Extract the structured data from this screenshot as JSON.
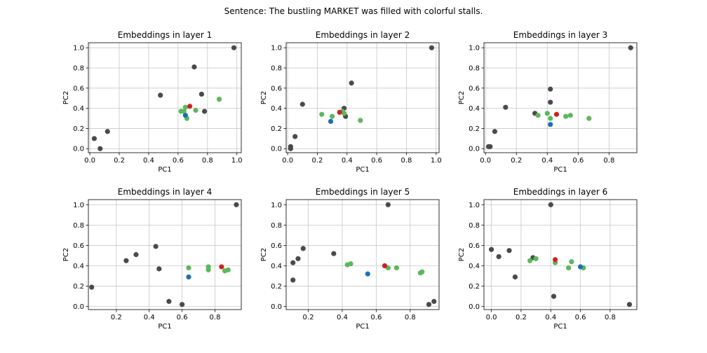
{
  "figure": {
    "suptitle": "Sentence: The bustling MARKET was filled with colorful stalls."
  },
  "colors": {
    "dark": "#4a4a4a",
    "green": "#5cb85c",
    "blue": "#1f6fb5",
    "red": "#cc2222",
    "grid": "#c8c8c8",
    "axis": "#000000"
  },
  "chart_data": [
    {
      "type": "scatter",
      "title": "Embeddings in layer 1",
      "xlabel": "PC1",
      "ylabel": "PC2",
      "xlim": [
        -0.01,
        1.03
      ],
      "ylim": [
        -0.04,
        1.05
      ],
      "xticks": [
        0.0,
        0.2,
        0.4,
        0.6,
        0.8,
        1.0
      ],
      "xtick_labels": [
        "0.0",
        "0.2",
        "0.4",
        "0.6",
        "0.8",
        "1.0"
      ],
      "yticks": [
        0.0,
        0.2,
        0.4,
        0.6,
        0.8,
        1.0
      ],
      "ytick_labels": [
        "0.0",
        "0.2",
        "0.4",
        "0.6",
        "0.8",
        "1.0"
      ],
      "grid": true,
      "points": [
        {
          "x": 0.03,
          "y": 0.1,
          "color": "dark"
        },
        {
          "x": 0.07,
          "y": 0.0,
          "color": "dark"
        },
        {
          "x": 0.12,
          "y": 0.17,
          "color": "dark"
        },
        {
          "x": 0.48,
          "y": 0.53,
          "color": "dark"
        },
        {
          "x": 0.71,
          "y": 0.81,
          "color": "dark"
        },
        {
          "x": 0.76,
          "y": 0.54,
          "color": "dark"
        },
        {
          "x": 0.78,
          "y": 0.37,
          "color": "dark"
        },
        {
          "x": 0.98,
          "y": 1.0,
          "color": "dark"
        },
        {
          "x": 0.62,
          "y": 0.37,
          "color": "green"
        },
        {
          "x": 0.64,
          "y": 0.37,
          "color": "green"
        },
        {
          "x": 0.65,
          "y": 0.41,
          "color": "green"
        },
        {
          "x": 0.66,
          "y": 0.3,
          "color": "green"
        },
        {
          "x": 0.72,
          "y": 0.38,
          "color": "green"
        },
        {
          "x": 0.88,
          "y": 0.49,
          "color": "green"
        },
        {
          "x": 0.65,
          "y": 0.33,
          "color": "blue"
        },
        {
          "x": 0.68,
          "y": 0.42,
          "color": "red"
        }
      ]
    },
    {
      "type": "scatter",
      "title": "Embeddings in layer 2",
      "xlabel": "PC1",
      "ylabel": "PC2",
      "xlim": [
        -0.01,
        1.02
      ],
      "ylim": [
        -0.04,
        1.05
      ],
      "xticks": [
        0.0,
        0.2,
        0.4,
        0.6,
        0.8,
        1.0
      ],
      "xtick_labels": [
        "0.0",
        "0.2",
        "0.4",
        "0.6",
        "0.8",
        "1.0"
      ],
      "yticks": [
        0.0,
        0.2,
        0.4,
        0.6,
        0.8,
        1.0
      ],
      "ytick_labels": [
        "0.0",
        "0.2",
        "0.4",
        "0.6",
        "0.8",
        "1.0"
      ],
      "grid": true,
      "points": [
        {
          "x": 0.02,
          "y": 0.0,
          "color": "dark"
        },
        {
          "x": 0.02,
          "y": 0.02,
          "color": "dark"
        },
        {
          "x": 0.05,
          "y": 0.12,
          "color": "dark"
        },
        {
          "x": 0.1,
          "y": 0.44,
          "color": "dark"
        },
        {
          "x": 0.38,
          "y": 0.4,
          "color": "dark"
        },
        {
          "x": 0.39,
          "y": 0.32,
          "color": "dark"
        },
        {
          "x": 0.43,
          "y": 0.65,
          "color": "dark"
        },
        {
          "x": 0.97,
          "y": 1.0,
          "color": "dark"
        },
        {
          "x": 0.23,
          "y": 0.34,
          "color": "green"
        },
        {
          "x": 0.3,
          "y": 0.32,
          "color": "green"
        },
        {
          "x": 0.37,
          "y": 0.37,
          "color": "green"
        },
        {
          "x": 0.38,
          "y": 0.35,
          "color": "green"
        },
        {
          "x": 0.49,
          "y": 0.28,
          "color": "green"
        },
        {
          "x": 0.29,
          "y": 0.27,
          "color": "blue"
        },
        {
          "x": 0.35,
          "y": 0.36,
          "color": "red"
        }
      ]
    },
    {
      "type": "scatter",
      "title": "Embeddings in layer 3",
      "xlabel": "PC1",
      "ylabel": "PC2",
      "xlim": [
        -0.01,
        0.98
      ],
      "ylim": [
        -0.04,
        1.05
      ],
      "xticks": [
        0.0,
        0.2,
        0.4,
        0.6,
        0.8
      ],
      "xtick_labels": [
        "0.0",
        "0.2",
        "0.4",
        "0.6",
        "0.8"
      ],
      "yticks": [
        0.0,
        0.2,
        0.4,
        0.6,
        0.8,
        1.0
      ],
      "ytick_labels": [
        "0.0",
        "0.2",
        "0.4",
        "0.6",
        "0.8",
        "1.0"
      ],
      "grid": true,
      "points": [
        {
          "x": 0.02,
          "y": 0.02,
          "color": "dark"
        },
        {
          "x": 0.03,
          "y": 0.02,
          "color": "dark"
        },
        {
          "x": 0.06,
          "y": 0.17,
          "color": "dark"
        },
        {
          "x": 0.13,
          "y": 0.41,
          "color": "dark"
        },
        {
          "x": 0.32,
          "y": 0.35,
          "color": "dark"
        },
        {
          "x": 0.42,
          "y": 0.46,
          "color": "dark"
        },
        {
          "x": 0.42,
          "y": 0.59,
          "color": "dark"
        },
        {
          "x": 0.94,
          "y": 1.0,
          "color": "dark"
        },
        {
          "x": 0.34,
          "y": 0.33,
          "color": "green"
        },
        {
          "x": 0.4,
          "y": 0.35,
          "color": "green"
        },
        {
          "x": 0.42,
          "y": 0.3,
          "color": "green"
        },
        {
          "x": 0.52,
          "y": 0.32,
          "color": "green"
        },
        {
          "x": 0.55,
          "y": 0.33,
          "color": "green"
        },
        {
          "x": 0.67,
          "y": 0.3,
          "color": "green"
        },
        {
          "x": 0.42,
          "y": 0.24,
          "color": "blue"
        },
        {
          "x": 0.46,
          "y": 0.34,
          "color": "red"
        }
      ]
    },
    {
      "type": "scatter",
      "title": "Embeddings in layer 4",
      "xlabel": "PC1",
      "ylabel": "PC2",
      "xlim": [
        0.03,
        0.96
      ],
      "ylim": [
        -0.03,
        1.05
      ],
      "xticks": [
        0.2,
        0.4,
        0.6,
        0.8
      ],
      "xtick_labels": [
        "0.2",
        "0.4",
        "0.6",
        "0.8"
      ],
      "yticks": [
        0.0,
        0.2,
        0.4,
        0.6,
        0.8,
        1.0
      ],
      "ytick_labels": [
        "0.0",
        "0.2",
        "0.4",
        "0.6",
        "0.8",
        "1.0"
      ],
      "grid": true,
      "points": [
        {
          "x": 0.05,
          "y": 0.19,
          "color": "dark"
        },
        {
          "x": 0.26,
          "y": 0.45,
          "color": "dark"
        },
        {
          "x": 0.32,
          "y": 0.51,
          "color": "dark"
        },
        {
          "x": 0.44,
          "y": 0.59,
          "color": "dark"
        },
        {
          "x": 0.46,
          "y": 0.37,
          "color": "dark"
        },
        {
          "x": 0.52,
          "y": 0.05,
          "color": "dark"
        },
        {
          "x": 0.6,
          "y": 0.02,
          "color": "dark"
        },
        {
          "x": 0.93,
          "y": 1.0,
          "color": "dark"
        },
        {
          "x": 0.64,
          "y": 0.38,
          "color": "green"
        },
        {
          "x": 0.76,
          "y": 0.39,
          "color": "green"
        },
        {
          "x": 0.76,
          "y": 0.36,
          "color": "green"
        },
        {
          "x": 0.86,
          "y": 0.35,
          "color": "green"
        },
        {
          "x": 0.88,
          "y": 0.36,
          "color": "green"
        },
        {
          "x": 0.64,
          "y": 0.29,
          "color": "blue"
        },
        {
          "x": 0.84,
          "y": 0.39,
          "color": "red"
        }
      ]
    },
    {
      "type": "scatter",
      "title": "Embeddings in layer 5",
      "xlabel": "PC1",
      "ylabel": "PC2",
      "xlim": [
        0.07,
        0.97
      ],
      "ylim": [
        -0.03,
        1.05
      ],
      "xticks": [
        0.2,
        0.4,
        0.6,
        0.8
      ],
      "xtick_labels": [
        "0.2",
        "0.4",
        "0.6",
        "0.8"
      ],
      "yticks": [
        0.0,
        0.2,
        0.4,
        0.6,
        0.8,
        1.0
      ],
      "ytick_labels": [
        "0.0",
        "0.2",
        "0.4",
        "0.6",
        "0.8",
        "1.0"
      ],
      "grid": true,
      "points": [
        {
          "x": 0.11,
          "y": 0.43,
          "color": "dark"
        },
        {
          "x": 0.11,
          "y": 0.26,
          "color": "dark"
        },
        {
          "x": 0.14,
          "y": 0.47,
          "color": "dark"
        },
        {
          "x": 0.17,
          "y": 0.57,
          "color": "dark"
        },
        {
          "x": 0.35,
          "y": 0.52,
          "color": "dark"
        },
        {
          "x": 0.67,
          "y": 1.0,
          "color": "dark"
        },
        {
          "x": 0.91,
          "y": 0.02,
          "color": "dark"
        },
        {
          "x": 0.94,
          "y": 0.05,
          "color": "dark"
        },
        {
          "x": 0.43,
          "y": 0.41,
          "color": "green"
        },
        {
          "x": 0.45,
          "y": 0.42,
          "color": "green"
        },
        {
          "x": 0.67,
          "y": 0.38,
          "color": "green"
        },
        {
          "x": 0.72,
          "y": 0.38,
          "color": "green"
        },
        {
          "x": 0.86,
          "y": 0.33,
          "color": "green"
        },
        {
          "x": 0.87,
          "y": 0.34,
          "color": "green"
        },
        {
          "x": 0.55,
          "y": 0.32,
          "color": "blue"
        },
        {
          "x": 0.65,
          "y": 0.4,
          "color": "red"
        }
      ]
    },
    {
      "type": "scatter",
      "title": "Embeddings in layer 6",
      "xlabel": "PC1",
      "ylabel": "PC2",
      "xlim": [
        -0.05,
        0.98
      ],
      "ylim": [
        -0.03,
        1.05
      ],
      "xticks": [
        0.0,
        0.2,
        0.4,
        0.6,
        0.8
      ],
      "xtick_labels": [
        "0.0",
        "0.2",
        "0.4",
        "0.6",
        "0.8"
      ],
      "yticks": [
        0.0,
        0.2,
        0.4,
        0.6,
        0.8,
        1.0
      ],
      "ytick_labels": [
        "0.0",
        "0.2",
        "0.4",
        "0.6",
        "0.8",
        "1.0"
      ],
      "grid": true,
      "points": [
        {
          "x": 0.0,
          "y": 0.56,
          "color": "dark"
        },
        {
          "x": 0.05,
          "y": 0.49,
          "color": "dark"
        },
        {
          "x": 0.12,
          "y": 0.55,
          "color": "dark"
        },
        {
          "x": 0.16,
          "y": 0.29,
          "color": "dark"
        },
        {
          "x": 0.28,
          "y": 0.48,
          "color": "dark"
        },
        {
          "x": 0.4,
          "y": 1.0,
          "color": "dark"
        },
        {
          "x": 0.42,
          "y": 0.1,
          "color": "dark"
        },
        {
          "x": 0.93,
          "y": 0.02,
          "color": "dark"
        },
        {
          "x": 0.26,
          "y": 0.45,
          "color": "green"
        },
        {
          "x": 0.3,
          "y": 0.47,
          "color": "green"
        },
        {
          "x": 0.43,
          "y": 0.43,
          "color": "green"
        },
        {
          "x": 0.52,
          "y": 0.38,
          "color": "green"
        },
        {
          "x": 0.54,
          "y": 0.44,
          "color": "green"
        },
        {
          "x": 0.62,
          "y": 0.38,
          "color": "green"
        },
        {
          "x": 0.6,
          "y": 0.39,
          "color": "blue"
        },
        {
          "x": 0.43,
          "y": 0.46,
          "color": "red"
        }
      ]
    }
  ]
}
